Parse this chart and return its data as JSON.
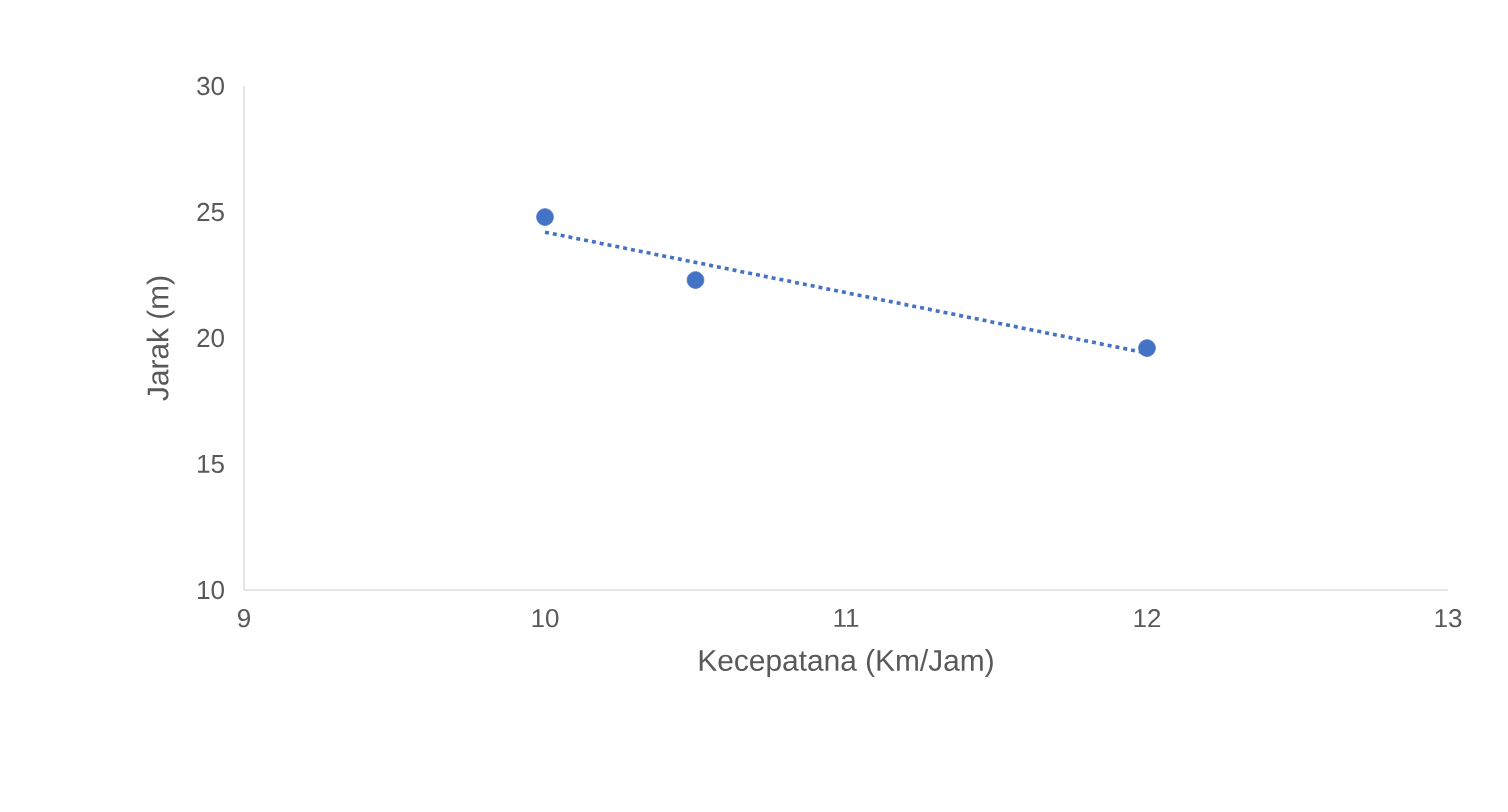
{
  "chart_data": {
    "type": "scatter",
    "xlabel": "Kecepatana (Km/Jam)",
    "ylabel": "Jarak (m)",
    "series": [
      {
        "color": "#4472c4",
        "x": [
          10,
          10.5,
          12
        ],
        "values": [
          24.8,
          22.3,
          19.6
        ],
        "marker": "circle"
      },
      {
        "type": "line",
        "color": "#4472c4",
        "x": [
          10,
          12
        ],
        "values": [
          24.2,
          19.4
        ],
        "line_style": "dotted",
        "marker": "none"
      }
    ],
    "xlim": [
      9,
      13
    ],
    "xticks": [
      9,
      10,
      11,
      12,
      13
    ],
    "ylim": [
      10,
      30
    ],
    "yticks": [
      10,
      15,
      20,
      25,
      30
    ],
    "grid": false
  }
}
